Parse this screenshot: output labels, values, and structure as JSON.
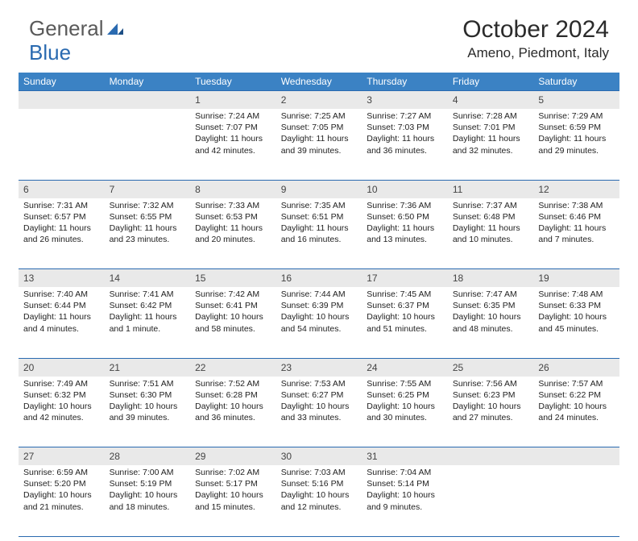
{
  "brand": {
    "general": "General",
    "blue": "Blue"
  },
  "title": "October 2024",
  "location": "Ameno, Piedmont, Italy",
  "colors": {
    "header_bg": "#3b82c4",
    "header_text": "#ffffff",
    "daynum_bg": "#e9e9e9",
    "border": "#2a6ab0",
    "logo_gray": "#5a5a5a",
    "logo_blue": "#2a6ab0"
  },
  "weekdays": [
    "Sunday",
    "Monday",
    "Tuesday",
    "Wednesday",
    "Thursday",
    "Friday",
    "Saturday"
  ],
  "weeks": [
    [
      null,
      null,
      {
        "n": "1",
        "sunrise": "7:24 AM",
        "sunset": "7:07 PM",
        "daylight": "11 hours and 42 minutes."
      },
      {
        "n": "2",
        "sunrise": "7:25 AM",
        "sunset": "7:05 PM",
        "daylight": "11 hours and 39 minutes."
      },
      {
        "n": "3",
        "sunrise": "7:27 AM",
        "sunset": "7:03 PM",
        "daylight": "11 hours and 36 minutes."
      },
      {
        "n": "4",
        "sunrise": "7:28 AM",
        "sunset": "7:01 PM",
        "daylight": "11 hours and 32 minutes."
      },
      {
        "n": "5",
        "sunrise": "7:29 AM",
        "sunset": "6:59 PM",
        "daylight": "11 hours and 29 minutes."
      }
    ],
    [
      {
        "n": "6",
        "sunrise": "7:31 AM",
        "sunset": "6:57 PM",
        "daylight": "11 hours and 26 minutes."
      },
      {
        "n": "7",
        "sunrise": "7:32 AM",
        "sunset": "6:55 PM",
        "daylight": "11 hours and 23 minutes."
      },
      {
        "n": "8",
        "sunrise": "7:33 AM",
        "sunset": "6:53 PM",
        "daylight": "11 hours and 20 minutes."
      },
      {
        "n": "9",
        "sunrise": "7:35 AM",
        "sunset": "6:51 PM",
        "daylight": "11 hours and 16 minutes."
      },
      {
        "n": "10",
        "sunrise": "7:36 AM",
        "sunset": "6:50 PM",
        "daylight": "11 hours and 13 minutes."
      },
      {
        "n": "11",
        "sunrise": "7:37 AM",
        "sunset": "6:48 PM",
        "daylight": "11 hours and 10 minutes."
      },
      {
        "n": "12",
        "sunrise": "7:38 AM",
        "sunset": "6:46 PM",
        "daylight": "11 hours and 7 minutes."
      }
    ],
    [
      {
        "n": "13",
        "sunrise": "7:40 AM",
        "sunset": "6:44 PM",
        "daylight": "11 hours and 4 minutes."
      },
      {
        "n": "14",
        "sunrise": "7:41 AM",
        "sunset": "6:42 PM",
        "daylight": "11 hours and 1 minute."
      },
      {
        "n": "15",
        "sunrise": "7:42 AM",
        "sunset": "6:41 PM",
        "daylight": "10 hours and 58 minutes."
      },
      {
        "n": "16",
        "sunrise": "7:44 AM",
        "sunset": "6:39 PM",
        "daylight": "10 hours and 54 minutes."
      },
      {
        "n": "17",
        "sunrise": "7:45 AM",
        "sunset": "6:37 PM",
        "daylight": "10 hours and 51 minutes."
      },
      {
        "n": "18",
        "sunrise": "7:47 AM",
        "sunset": "6:35 PM",
        "daylight": "10 hours and 48 minutes."
      },
      {
        "n": "19",
        "sunrise": "7:48 AM",
        "sunset": "6:33 PM",
        "daylight": "10 hours and 45 minutes."
      }
    ],
    [
      {
        "n": "20",
        "sunrise": "7:49 AM",
        "sunset": "6:32 PM",
        "daylight": "10 hours and 42 minutes."
      },
      {
        "n": "21",
        "sunrise": "7:51 AM",
        "sunset": "6:30 PM",
        "daylight": "10 hours and 39 minutes."
      },
      {
        "n": "22",
        "sunrise": "7:52 AM",
        "sunset": "6:28 PM",
        "daylight": "10 hours and 36 minutes."
      },
      {
        "n": "23",
        "sunrise": "7:53 AM",
        "sunset": "6:27 PM",
        "daylight": "10 hours and 33 minutes."
      },
      {
        "n": "24",
        "sunrise": "7:55 AM",
        "sunset": "6:25 PM",
        "daylight": "10 hours and 30 minutes."
      },
      {
        "n": "25",
        "sunrise": "7:56 AM",
        "sunset": "6:23 PM",
        "daylight": "10 hours and 27 minutes."
      },
      {
        "n": "26",
        "sunrise": "7:57 AM",
        "sunset": "6:22 PM",
        "daylight": "10 hours and 24 minutes."
      }
    ],
    [
      {
        "n": "27",
        "sunrise": "6:59 AM",
        "sunset": "5:20 PM",
        "daylight": "10 hours and 21 minutes."
      },
      {
        "n": "28",
        "sunrise": "7:00 AM",
        "sunset": "5:19 PM",
        "daylight": "10 hours and 18 minutes."
      },
      {
        "n": "29",
        "sunrise": "7:02 AM",
        "sunset": "5:17 PM",
        "daylight": "10 hours and 15 minutes."
      },
      {
        "n": "30",
        "sunrise": "7:03 AM",
        "sunset": "5:16 PM",
        "daylight": "10 hours and 12 minutes."
      },
      {
        "n": "31",
        "sunrise": "7:04 AM",
        "sunset": "5:14 PM",
        "daylight": "10 hours and 9 minutes."
      },
      null,
      null
    ]
  ],
  "labels": {
    "sunrise": "Sunrise: ",
    "sunset": "Sunset: ",
    "daylight": "Daylight: "
  }
}
